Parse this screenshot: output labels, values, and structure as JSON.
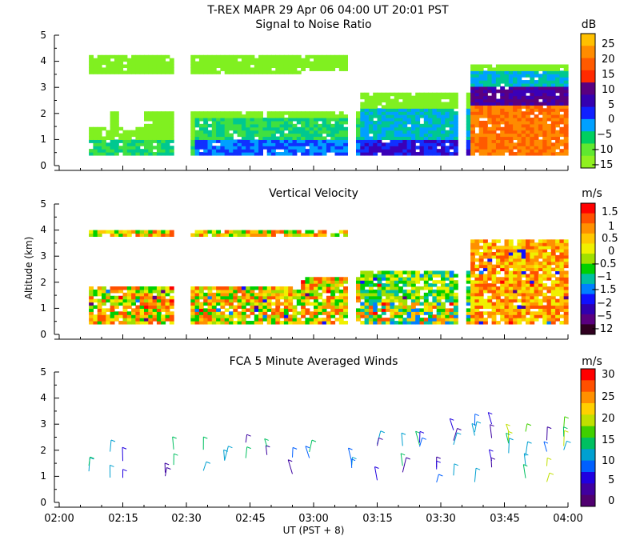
{
  "header": {
    "title": "T-REX   MAPR 29 Apr 06   04:00 UT   20:01   PST"
  },
  "x_axis": {
    "label": "UT  (PST + 8)",
    "ticks": [
      "02:00",
      "02:15",
      "02:30",
      "02:45",
      "03:00",
      "03:15",
      "03:30",
      "03:45",
      "04:00"
    ]
  },
  "y_axis": {
    "label": "Altitude (km)"
  },
  "chart_data": [
    {
      "type": "heatmap",
      "title": "Signal to Noise Ratio",
      "ylabel": "Altitude (km)",
      "xlabel": "UT  (PST + 8)",
      "x_range_min": [
        0,
        120
      ],
      "ylim": [
        0,
        5
      ],
      "y_ticks": [
        "0",
        "1",
        "2",
        "3",
        "4",
        "5"
      ],
      "colorbar": {
        "unit": "dB",
        "labels": [
          "25",
          "20",
          "15",
          "10",
          "5",
          "0",
          "−5",
          "−10",
          "−15"
        ],
        "colors": [
          "#ff7f00",
          "#ff5a00",
          "#ff2a00",
          "#5a0080",
          "#3500b0",
          "#1020ff",
          "#00a0ff",
          "#00d060",
          "#60e830",
          "#90f020",
          "#ffc000"
        ]
      },
      "segments_min": [
        [
          7,
          27
        ],
        [
          31,
          56
        ],
        [
          56,
          68
        ],
        [
          70,
          94
        ],
        [
          96,
          120
        ]
      ]
    },
    {
      "type": "heatmap",
      "title": "Vertical Velocity",
      "ylabel": "Altitude (km)",
      "x_range_min": [
        0,
        120
      ],
      "ylim": [
        0,
        5
      ],
      "y_ticks": [
        "0",
        "1",
        "2",
        "3",
        "4",
        "5"
      ],
      "colorbar": {
        "unit": "m/s",
        "labels": [
          "1.5",
          "1",
          "0.5",
          "0",
          "−0.5",
          "−1",
          "−1.5",
          "−2",
          "−5",
          "−12"
        ],
        "colors": [
          "#ff0000",
          "#ff5000",
          "#ff9000",
          "#ffc800",
          "#f0f000",
          "#a0e000",
          "#00d000",
          "#00c0a0",
          "#0080ff",
          "#1010ff",
          "#3000b0",
          "#5a0080",
          "#300020"
        ]
      },
      "segments_min": [
        [
          7,
          27
        ],
        [
          31,
          56
        ],
        [
          56,
          68
        ],
        [
          70,
          94
        ],
        [
          96,
          120
        ]
      ]
    },
    {
      "type": "scatter",
      "title": "FCA 5 Minute Averaged Winds",
      "ylabel": "Altitude (km)",
      "x_range_min": [
        0,
        120
      ],
      "ylim": [
        0,
        5
      ],
      "y_ticks": [
        "0",
        "1",
        "2",
        "3",
        "4",
        "5"
      ],
      "colorbar": {
        "unit": "m/s",
        "labels": [
          "30",
          "25",
          "20",
          "15",
          "10",
          "5",
          "0"
        ],
        "colors": [
          "#ff0000",
          "#ff5000",
          "#ff9000",
          "#ffd000",
          "#c0e000",
          "#40d000",
          "#00c060",
          "#00a0d0",
          "#0060ff",
          "#2000e0",
          "#4000a0",
          "#500070"
        ]
      },
      "barb_columns_min": [
        7,
        12,
        15,
        25,
        27,
        34,
        39,
        44,
        49,
        55,
        59,
        69,
        75,
        81,
        85,
        89,
        93,
        98,
        102,
        106,
        110,
        115,
        119
      ]
    }
  ]
}
